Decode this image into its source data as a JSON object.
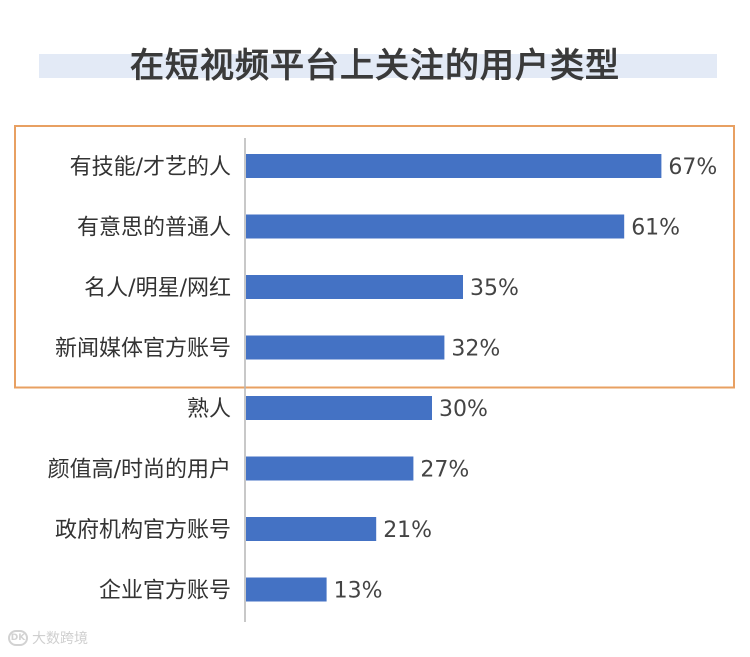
{
  "chart_data": {
    "type": "bar",
    "orientation": "horizontal",
    "title": "在短视频平台上关注的用户类型",
    "categories": [
      "有技能/才艺的人",
      "有意思的普通人",
      "名人/明星/网红",
      "新闻媒体官方账号",
      "熟人",
      "颜值高/时尚的用户",
      "政府机构官方账号",
      "企业官方账号"
    ],
    "values": [
      67,
      61,
      35,
      32,
      30,
      27,
      21,
      13
    ],
    "value_labels": [
      "67%",
      "61%",
      "35%",
      "32%",
      "30%",
      "27%",
      "21%",
      "13%"
    ],
    "xlim": [
      0,
      100
    ],
    "grid": false,
    "highlight": {
      "from_index": 0,
      "to_index": 3,
      "color": "#e8a062"
    },
    "bar_color": "#4472c4"
  },
  "watermark": {
    "text": "大数跨境",
    "icon": "logo-icon",
    "icon_text": "DK"
  }
}
